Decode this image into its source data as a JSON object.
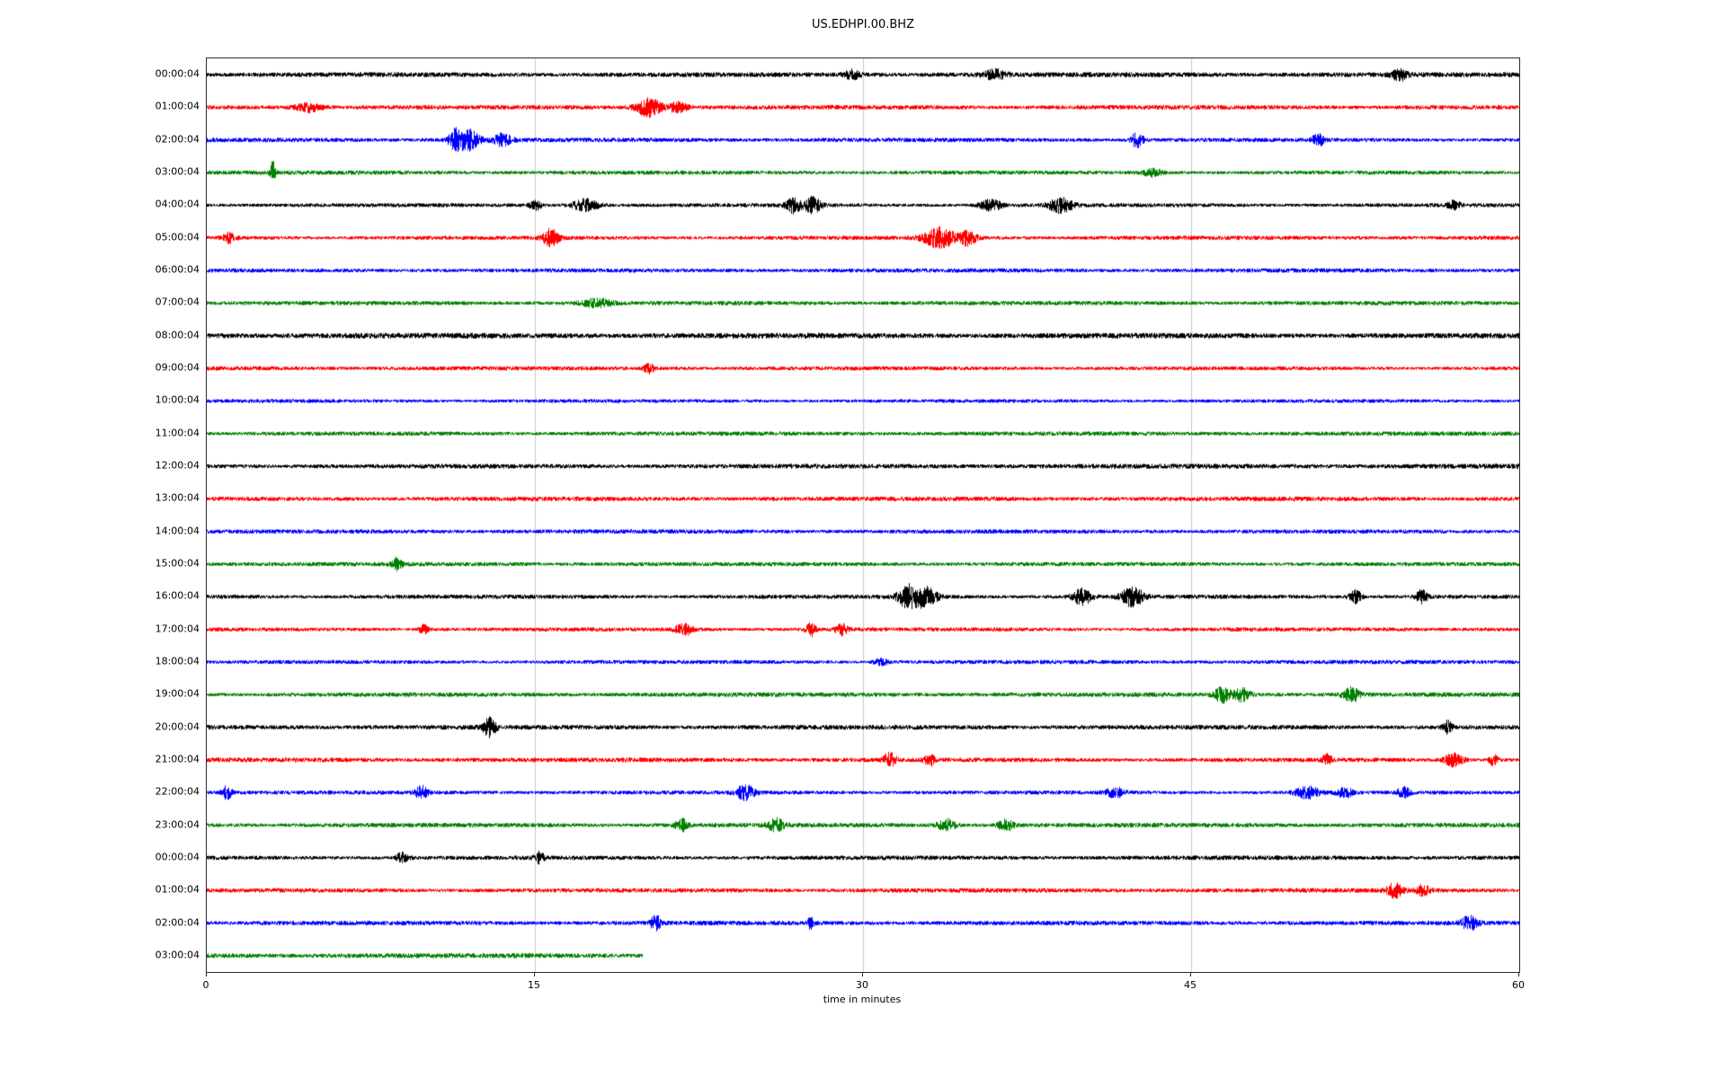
{
  "chart_data": {
    "type": "line",
    "subtype": "helicorder-seismogram",
    "title": "US.EDHPI.00.BHZ",
    "xlabel": "time in minutes",
    "x_range": [
      0,
      60
    ],
    "x_ticks": [
      0,
      15,
      30,
      45,
      60
    ],
    "grid_ticks": [
      15,
      30,
      45
    ],
    "grid_color": "#c9c9c9",
    "legend": "none",
    "colors": {
      "black": "#000000",
      "red": "#ff0000",
      "blue": "#0000ff",
      "green": "#008000"
    },
    "rows": [
      {
        "label": "00:00:04",
        "color": "black",
        "end": 60,
        "amp": 1.1,
        "events": [
          {
            "t": 29.5,
            "a": 2.0,
            "w": 0.5
          },
          {
            "t": 36.0,
            "a": 1.8,
            "w": 0.8
          },
          {
            "t": 54.5,
            "a": 2.0,
            "w": 0.5
          }
        ]
      },
      {
        "label": "01:00:04",
        "color": "red",
        "end": 60,
        "amp": 1.0,
        "events": [
          {
            "t": 4.6,
            "a": 2.5,
            "w": 0.8
          },
          {
            "t": 20.2,
            "a": 5.0,
            "w": 0.8
          },
          {
            "t": 21.5,
            "a": 2.5,
            "w": 0.6
          }
        ]
      },
      {
        "label": "02:00:04",
        "color": "blue",
        "end": 60,
        "amp": 1.0,
        "events": [
          {
            "t": 11.3,
            "a": 4.0,
            "w": 0.4
          },
          {
            "t": 11.9,
            "a": 5.0,
            "w": 0.7
          },
          {
            "t": 13.5,
            "a": 2.5,
            "w": 0.6
          },
          {
            "t": 42.5,
            "a": 4.0,
            "w": 0.4
          },
          {
            "t": 50.8,
            "a": 2.5,
            "w": 0.4
          }
        ]
      },
      {
        "label": "03:00:04",
        "color": "green",
        "end": 60,
        "amp": 1.0,
        "events": [
          {
            "t": 3.0,
            "a": 5.0,
            "w": 0.15
          },
          {
            "t": 43.2,
            "a": 2.2,
            "w": 0.6
          }
        ]
      },
      {
        "label": "04:00:04",
        "color": "black",
        "end": 60,
        "amp": 1.0,
        "events": [
          {
            "t": 15.0,
            "a": 2.5,
            "w": 0.4
          },
          {
            "t": 17.3,
            "a": 4.0,
            "w": 0.8
          },
          {
            "t": 26.8,
            "a": 3.5,
            "w": 0.5
          },
          {
            "t": 27.7,
            "a": 4.0,
            "w": 0.5
          },
          {
            "t": 35.8,
            "a": 3.0,
            "w": 0.7
          },
          {
            "t": 39.0,
            "a": 3.5,
            "w": 0.8
          },
          {
            "t": 57.0,
            "a": 2.0,
            "w": 0.4
          }
        ]
      },
      {
        "label": "05:00:04",
        "color": "red",
        "end": 60,
        "amp": 1.0,
        "events": [
          {
            "t": 1.0,
            "a": 2.5,
            "w": 0.4
          },
          {
            "t": 15.7,
            "a": 4.5,
            "w": 0.5
          },
          {
            "t": 33.5,
            "a": 5.0,
            "w": 1.0
          },
          {
            "t": 34.8,
            "a": 4.0,
            "w": 0.5
          }
        ]
      },
      {
        "label": "06:00:04",
        "color": "blue",
        "end": 60,
        "amp": 0.95,
        "events": []
      },
      {
        "label": "07:00:04",
        "color": "green",
        "end": 60,
        "amp": 0.95,
        "events": [
          {
            "t": 17.8,
            "a": 1.8,
            "w": 1.0
          }
        ]
      },
      {
        "label": "08:00:04",
        "color": "black",
        "end": 60,
        "amp": 1.25,
        "events": []
      },
      {
        "label": "09:00:04",
        "color": "red",
        "end": 60,
        "amp": 1.0,
        "events": [
          {
            "t": 20.2,
            "a": 2.5,
            "w": 0.3
          }
        ]
      },
      {
        "label": "10:00:04",
        "color": "blue",
        "end": 60,
        "amp": 0.95,
        "events": []
      },
      {
        "label": "11:00:04",
        "color": "green",
        "end": 60,
        "amp": 1.05,
        "events": []
      },
      {
        "label": "12:00:04",
        "color": "black",
        "end": 60,
        "amp": 1.1,
        "events": []
      },
      {
        "label": "13:00:04",
        "color": "red",
        "end": 60,
        "amp": 1.0,
        "events": []
      },
      {
        "label": "14:00:04",
        "color": "blue",
        "end": 60,
        "amp": 0.95,
        "events": []
      },
      {
        "label": "15:00:04",
        "color": "green",
        "end": 60,
        "amp": 1.0,
        "events": [
          {
            "t": 8.7,
            "a": 2.5,
            "w": 0.3
          }
        ]
      },
      {
        "label": "16:00:04",
        "color": "black",
        "end": 60,
        "amp": 1.05,
        "events": [
          {
            "t": 32.0,
            "a": 5.0,
            "w": 0.6
          },
          {
            "t": 32.8,
            "a": 5.0,
            "w": 0.8
          },
          {
            "t": 40.0,
            "a": 4.0,
            "w": 0.6
          },
          {
            "t": 42.3,
            "a": 4.5,
            "w": 0.7
          },
          {
            "t": 52.5,
            "a": 4.0,
            "w": 0.4
          },
          {
            "t": 55.5,
            "a": 3.5,
            "w": 0.4
          }
        ]
      },
      {
        "label": "17:00:04",
        "color": "red",
        "end": 60,
        "amp": 1.0,
        "events": [
          {
            "t": 9.9,
            "a": 3.0,
            "w": 0.3
          },
          {
            "t": 21.8,
            "a": 3.0,
            "w": 0.6
          },
          {
            "t": 27.6,
            "a": 4.0,
            "w": 0.3
          },
          {
            "t": 29.0,
            "a": 2.8,
            "w": 0.4
          }
        ]
      },
      {
        "label": "18:00:04",
        "color": "blue",
        "end": 60,
        "amp": 0.95,
        "events": [
          {
            "t": 30.8,
            "a": 2.0,
            "w": 0.4
          }
        ]
      },
      {
        "label": "19:00:04",
        "color": "green",
        "end": 60,
        "amp": 1.0,
        "events": [
          {
            "t": 46.4,
            "a": 3.5,
            "w": 0.5
          },
          {
            "t": 47.3,
            "a": 3.0,
            "w": 0.5
          },
          {
            "t": 52.3,
            "a": 3.5,
            "w": 0.5
          }
        ]
      },
      {
        "label": "20:00:04",
        "color": "black",
        "end": 60,
        "amp": 1.05,
        "events": [
          {
            "t": 12.9,
            "a": 3.5,
            "w": 0.4
          },
          {
            "t": 56.7,
            "a": 3.0,
            "w": 0.3
          }
        ]
      },
      {
        "label": "21:00:04",
        "color": "red",
        "end": 60,
        "amp": 1.05,
        "events": [
          {
            "t": 31.2,
            "a": 3.0,
            "w": 0.4
          },
          {
            "t": 33.0,
            "a": 3.0,
            "w": 0.3
          },
          {
            "t": 51.2,
            "a": 2.8,
            "w": 0.3
          },
          {
            "t": 57.0,
            "a": 3.5,
            "w": 0.6
          },
          {
            "t": 58.8,
            "a": 3.0,
            "w": 0.3
          }
        ]
      },
      {
        "label": "22:00:04",
        "color": "blue",
        "end": 60,
        "amp": 1.0,
        "events": [
          {
            "t": 0.9,
            "a": 3.5,
            "w": 0.3
          },
          {
            "t": 9.8,
            "a": 3.0,
            "w": 0.4
          },
          {
            "t": 24.6,
            "a": 3.5,
            "w": 0.6
          },
          {
            "t": 41.5,
            "a": 2.5,
            "w": 0.6
          },
          {
            "t": 50.3,
            "a": 3.0,
            "w": 0.8
          },
          {
            "t": 52.0,
            "a": 2.5,
            "w": 0.5
          },
          {
            "t": 54.7,
            "a": 2.5,
            "w": 0.4
          }
        ]
      },
      {
        "label": "23:00:04",
        "color": "green",
        "end": 60,
        "amp": 1.15,
        "events": [
          {
            "t": 21.7,
            "a": 3.0,
            "w": 0.4
          },
          {
            "t": 26.0,
            "a": 2.5,
            "w": 0.5
          },
          {
            "t": 33.8,
            "a": 3.0,
            "w": 0.6
          },
          {
            "t": 36.5,
            "a": 2.8,
            "w": 0.5
          }
        ]
      },
      {
        "label": "00:00:04",
        "color": "black",
        "end": 60,
        "amp": 1.05,
        "events": [
          {
            "t": 8.9,
            "a": 2.5,
            "w": 0.4
          },
          {
            "t": 15.2,
            "a": 2.5,
            "w": 0.3
          }
        ]
      },
      {
        "label": "01:00:04",
        "color": "red",
        "end": 60,
        "amp": 1.0,
        "events": [
          {
            "t": 54.3,
            "a": 3.0,
            "w": 0.5
          },
          {
            "t": 55.6,
            "a": 2.5,
            "w": 0.4
          }
        ]
      },
      {
        "label": "02:00:04",
        "color": "blue",
        "end": 60,
        "amp": 1.0,
        "events": [
          {
            "t": 20.5,
            "a": 3.5,
            "w": 0.3
          },
          {
            "t": 27.6,
            "a": 2.5,
            "w": 0.2
          },
          {
            "t": 57.7,
            "a": 3.0,
            "w": 0.5
          }
        ]
      },
      {
        "label": "03:00:04",
        "color": "green",
        "end": 19.9,
        "amp": 1.1,
        "events": []
      }
    ]
  }
}
